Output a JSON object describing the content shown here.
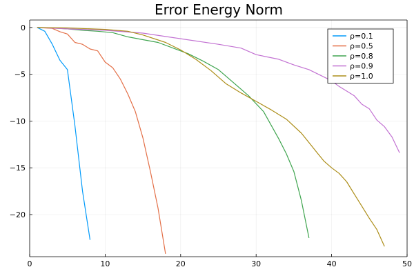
{
  "chart_data": {
    "type": "line",
    "title": "Error Energy Norm",
    "xlabel": "",
    "ylabel": "",
    "xlim": [
      0,
      50
    ],
    "ylim": [
      -24.5,
      0.8
    ],
    "xticks": [
      0,
      10,
      20,
      30,
      40,
      50
    ],
    "yticks": [
      0,
      -5,
      -10,
      -15,
      -20
    ],
    "xtick_labels": [
      "0",
      "10",
      "20",
      "30",
      "40",
      "50"
    ],
    "ytick_labels": [
      "0",
      "−5",
      "−10",
      "−15",
      "−20"
    ],
    "grid": true,
    "legend_position": "top-right",
    "series": [
      {
        "name": "ρ=0.1",
        "color": "#009AFA",
        "x": [
          1,
          2,
          3,
          4,
          5,
          6,
          7,
          8
        ],
        "y": [
          0,
          -0.4,
          -1.8,
          -3.5,
          -4.5,
          -10.5,
          -17.5,
          -22.7
        ]
      },
      {
        "name": "ρ=0.5",
        "color": "#E36F47",
        "x": [
          1,
          2,
          3,
          4,
          5,
          6,
          7,
          8,
          9,
          10,
          11,
          12,
          13,
          14,
          15,
          16,
          17,
          18
        ],
        "y": [
          0,
          -0.05,
          -0.1,
          -0.45,
          -0.7,
          -1.6,
          -1.8,
          -2.3,
          -2.5,
          -3.7,
          -4.3,
          -5.5,
          -7.1,
          -9.0,
          -11.8,
          -15.4,
          -19.3,
          -24.2
        ]
      },
      {
        "name": "ρ=0.8",
        "color": "#3EA44E",
        "x": [
          1,
          3,
          5,
          7,
          9,
          11,
          13,
          15,
          17,
          19,
          21,
          23,
          25,
          27,
          29,
          31,
          33,
          34,
          35,
          36,
          37
        ],
        "y": [
          0,
          -0.05,
          -0.15,
          -0.3,
          -0.4,
          -0.55,
          -1.0,
          -1.3,
          -1.6,
          -2.2,
          -2.8,
          -3.6,
          -4.5,
          -5.9,
          -7.3,
          -9.0,
          -11.9,
          -13.5,
          -15.4,
          -18.5,
          -22.5
        ]
      },
      {
        "name": "ρ=0.9",
        "color": "#C271D2",
        "x": [
          1,
          5,
          10,
          15,
          20,
          25,
          28,
          30,
          33,
          35,
          37,
          39,
          40,
          41,
          42,
          43,
          44,
          45,
          46,
          47,
          48,
          49
        ],
        "y": [
          0,
          -0.15,
          -0.3,
          -0.6,
          -1.2,
          -1.8,
          -2.2,
          -2.9,
          -3.4,
          -4.0,
          -4.5,
          -5.3,
          -5.7,
          -6.3,
          -6.8,
          -7.3,
          -8.2,
          -8.7,
          -9.9,
          -10.6,
          -11.7,
          -13.4
        ]
      },
      {
        "name": "ρ=1.0",
        "color": "#AC8D18",
        "x": [
          1,
          5,
          10,
          13,
          15,
          18,
          20,
          22,
          24,
          26,
          28,
          30,
          32,
          34,
          36,
          37,
          38,
          39,
          40,
          41,
          42,
          43,
          44,
          45,
          46,
          47
        ],
        "y": [
          0,
          -0.05,
          -0.2,
          -0.4,
          -0.8,
          -1.6,
          -2.4,
          -3.4,
          -4.6,
          -6.0,
          -7.0,
          -7.9,
          -8.8,
          -9.8,
          -11.3,
          -12.3,
          -13.3,
          -14.3,
          -15.0,
          -15.6,
          -16.5,
          -17.8,
          -19.1,
          -20.4,
          -21.6,
          -23.4
        ]
      }
    ]
  }
}
